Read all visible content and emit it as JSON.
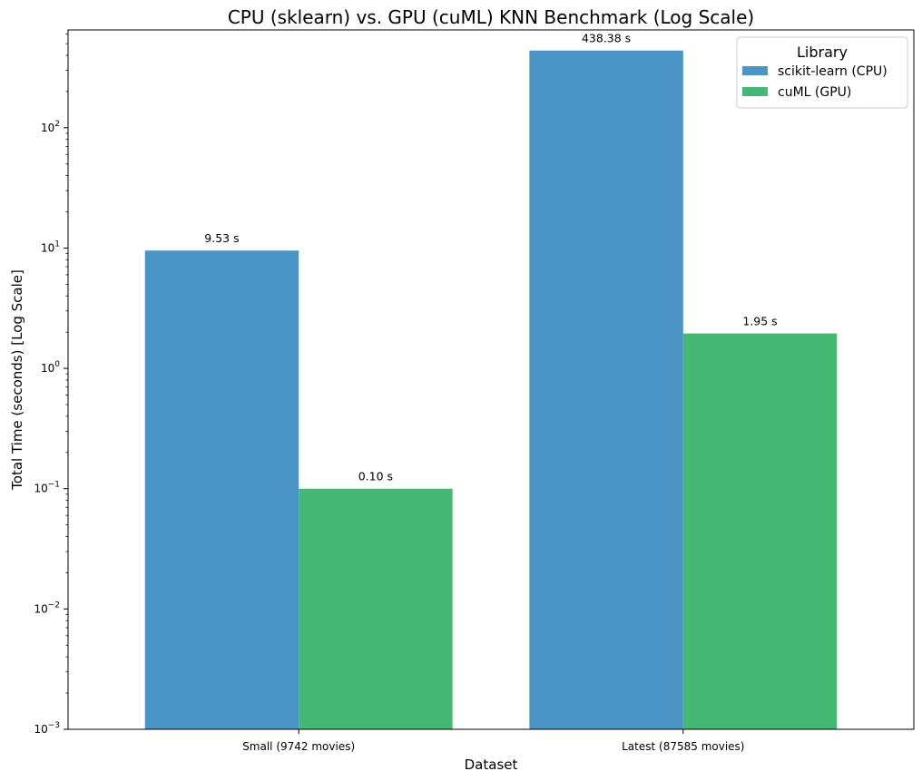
{
  "chart_data": {
    "type": "bar",
    "title": "CPU (sklearn) vs. GPU (cuML) KNN Benchmark (Log Scale)",
    "xlabel": "Dataset",
    "ylabel": "Total Time (seconds) [Log Scale]",
    "categories": [
      "Small (9742 movies)",
      "Latest (87585 movies)"
    ],
    "series": [
      {
        "name": "scikit-learn (CPU)",
        "values": [
          9.53,
          438.38
        ],
        "labels": [
          "9.53 s",
          "438.38 s"
        ],
        "color": "#4a94c6"
      },
      {
        "name": "cuML (GPU)",
        "values": [
          0.1,
          1.95
        ],
        "labels": [
          "0.10 s",
          "1.95 s"
        ],
        "color": "#44b874"
      }
    ],
    "yscale": "log",
    "ylim": [
      0.001,
      650
    ],
    "yticks": [
      0.001,
      0.01,
      0.1,
      1,
      10,
      100
    ],
    "ytick_labels": [
      {
        "base": "10",
        "exp": "−3"
      },
      {
        "base": "10",
        "exp": "−2"
      },
      {
        "base": "10",
        "exp": "−1"
      },
      {
        "base": "10",
        "exp": "0"
      },
      {
        "base": "10",
        "exp": "1"
      },
      {
        "base": "10",
        "exp": "2"
      }
    ],
    "legend": {
      "title": "Library",
      "location": "upper right"
    },
    "grid": false
  }
}
